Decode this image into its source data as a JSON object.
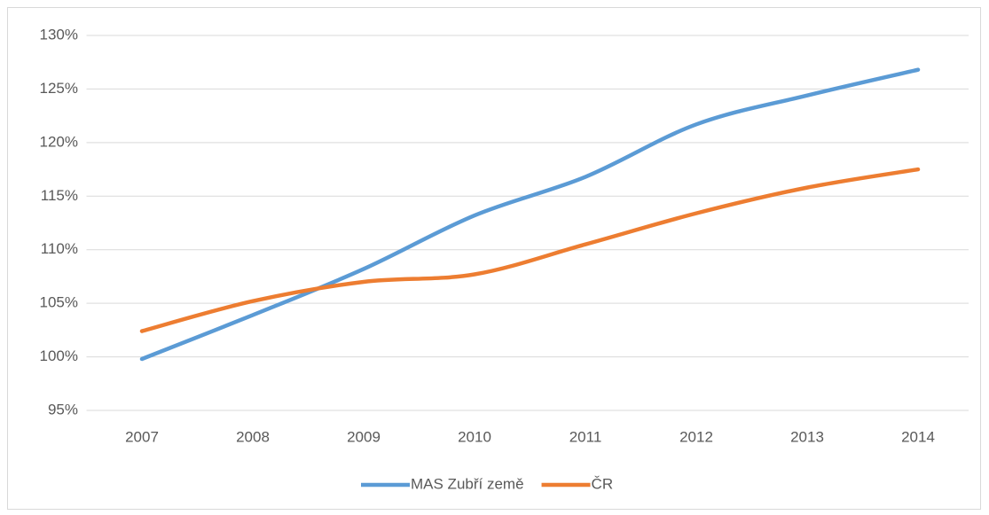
{
  "chart_data": {
    "type": "line",
    "categories": [
      "2007",
      "2008",
      "2009",
      "2010",
      "2011",
      "2012",
      "2013",
      "2014"
    ],
    "series": [
      {
        "name": "MAS Zubří země",
        "color": "#5b9bd5",
        "values": [
          99.8,
          103.9,
          108.2,
          113.2,
          116.8,
          121.7,
          124.4,
          126.8
        ]
      },
      {
        "name": "ČR",
        "color": "#ed7d31",
        "values": [
          102.4,
          105.2,
          107.0,
          107.7,
          110.5,
          113.4,
          115.8,
          117.5
        ]
      }
    ],
    "ylim": [
      95,
      130
    ],
    "yticks": [
      {
        "value": 95,
        "label": "95%"
      },
      {
        "value": 100,
        "label": "100%"
      },
      {
        "value": 105,
        "label": "105%"
      },
      {
        "value": 110,
        "label": "110%"
      },
      {
        "value": 115,
        "label": "115%"
      },
      {
        "value": 120,
        "label": "120%"
      },
      {
        "value": 125,
        "label": "125%"
      },
      {
        "value": 130,
        "label": "130%"
      }
    ],
    "grid": true,
    "smooth": true,
    "legend": "bottom"
  }
}
